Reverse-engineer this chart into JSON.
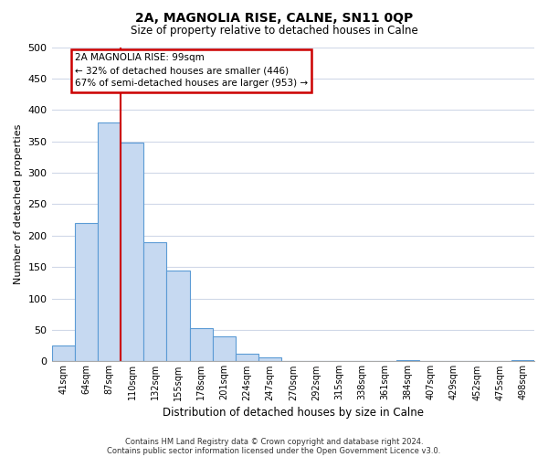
{
  "title": "2A, MAGNOLIA RISE, CALNE, SN11 0QP",
  "subtitle": "Size of property relative to detached houses in Calne",
  "xlabel": "Distribution of detached houses by size in Calne",
  "ylabel": "Number of detached properties",
  "bar_labels": [
    "41sqm",
    "64sqm",
    "87sqm",
    "110sqm",
    "132sqm",
    "155sqm",
    "178sqm",
    "201sqm",
    "224sqm",
    "247sqm",
    "270sqm",
    "292sqm",
    "315sqm",
    "338sqm",
    "361sqm",
    "384sqm",
    "407sqm",
    "429sqm",
    "452sqm",
    "475sqm",
    "498sqm"
  ],
  "bar_values": [
    25,
    220,
    380,
    348,
    190,
    145,
    53,
    40,
    12,
    7,
    0,
    0,
    0,
    0,
    0,
    2,
    0,
    0,
    0,
    0,
    2
  ],
  "bar_color": "#c6d9f1",
  "bar_edge_color": "#5b9bd5",
  "vline_color": "#cc0000",
  "vline_position": 2.5,
  "ylim": [
    0,
    500
  ],
  "yticks": [
    0,
    50,
    100,
    150,
    200,
    250,
    300,
    350,
    400,
    450,
    500
  ],
  "annotation_title": "2A MAGNOLIA RISE: 99sqm",
  "annotation_line1": "← 32% of detached houses are smaller (446)",
  "annotation_line2": "67% of semi-detached houses are larger (953) →",
  "annotation_box_color": "#ffffff",
  "annotation_box_edge": "#cc0000",
  "footer1": "Contains HM Land Registry data © Crown copyright and database right 2024.",
  "footer2": "Contains public sector information licensed under the Open Government Licence v3.0.",
  "background_color": "#ffffff",
  "grid_color": "#d0d8e8"
}
